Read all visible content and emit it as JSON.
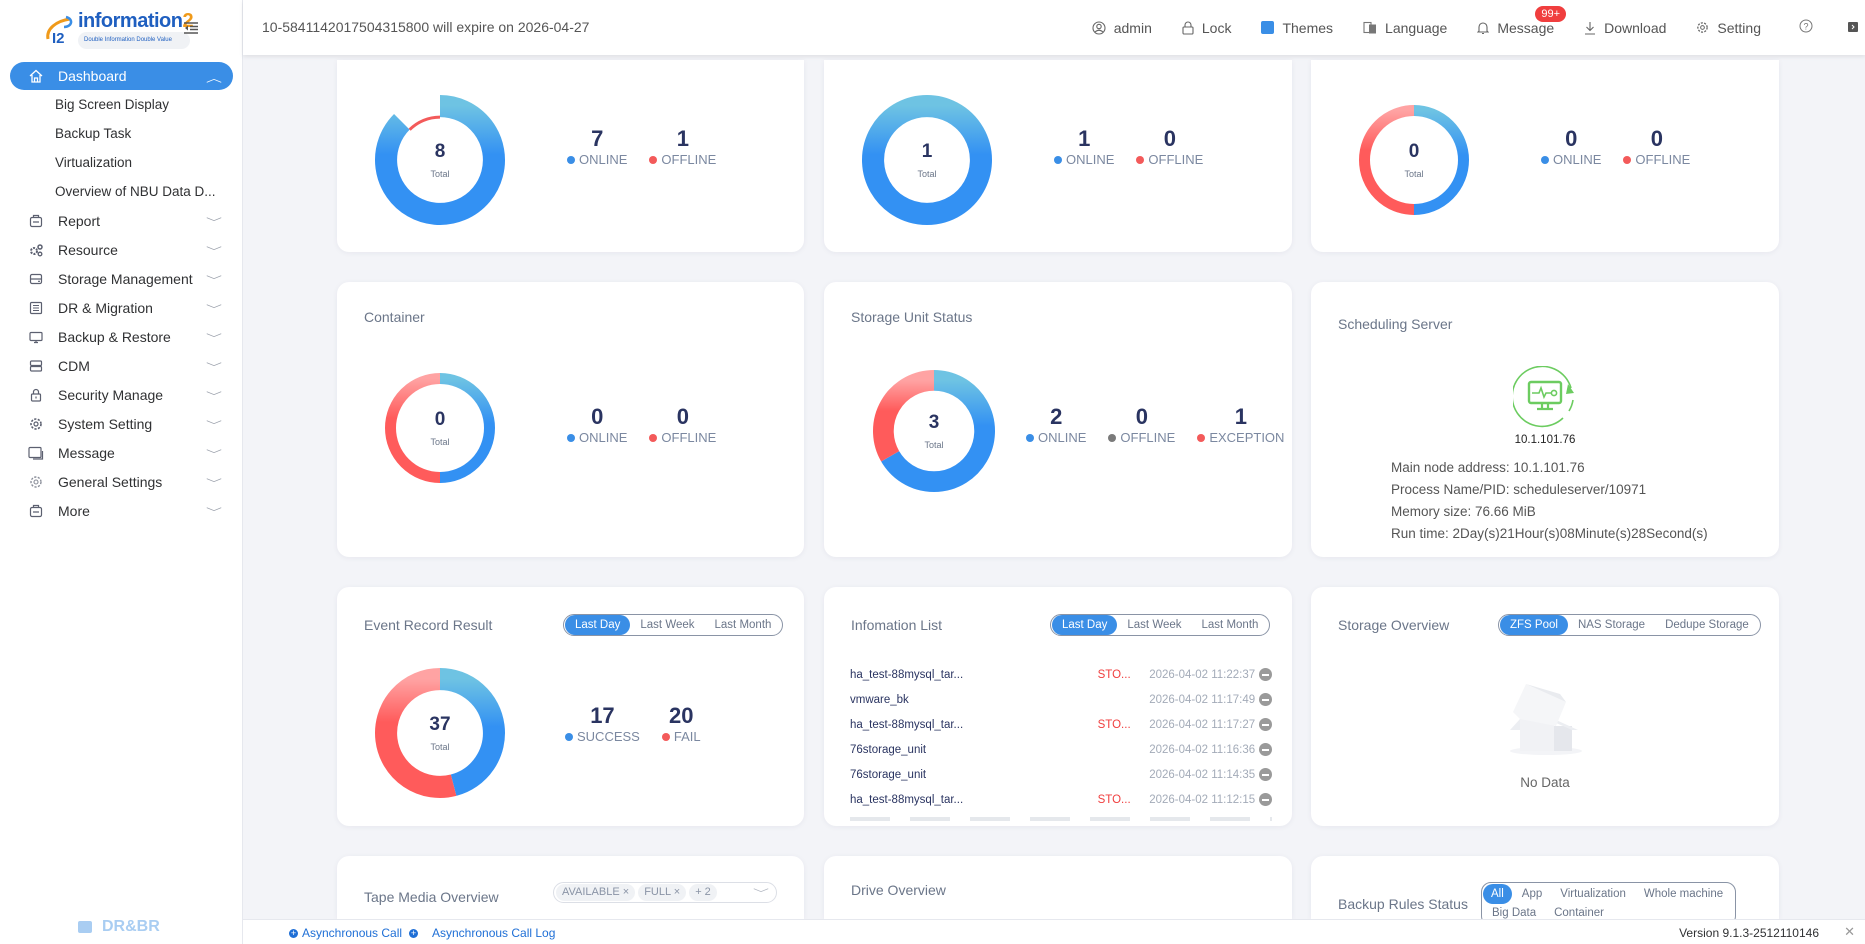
{
  "app": {
    "brand": "information",
    "brand_suffix": "2",
    "tagline": "Double Information Double Value",
    "footer_brand": "DR&BR"
  },
  "header": {
    "expire_notice": "10-5841142017504315800 will expire on 2026-04-27",
    "items": {
      "user": "admin",
      "lock": "Lock",
      "themes": "Themes",
      "language": "Language",
      "message": "Message",
      "message_badge": "99+",
      "download": "Download",
      "setting": "Setting"
    },
    "accent_color": "#3a8ee6"
  },
  "sidebar": {
    "active": {
      "label": "Dashboard",
      "icon": "home-icon"
    },
    "sub_items": [
      "Big Screen Display",
      "Backup Task",
      "Virtualization",
      "Overview of NBU Data D..."
    ],
    "items": [
      {
        "label": "Report",
        "icon": "report-icon"
      },
      {
        "label": "Resource",
        "icon": "resource-icon"
      },
      {
        "label": "Storage Management",
        "icon": "storage-icon"
      },
      {
        "label": "DR & Migration",
        "icon": "list-icon"
      },
      {
        "label": "Backup & Restore",
        "icon": "monitor-icon"
      },
      {
        "label": "CDM",
        "icon": "server-icon"
      },
      {
        "label": "Security Manage",
        "icon": "lock-icon"
      },
      {
        "label": "System Setting",
        "icon": "gear-icon"
      },
      {
        "label": "Message",
        "icon": "message-icon"
      },
      {
        "label": "General Settings",
        "icon": "gear-icon"
      },
      {
        "label": "More",
        "icon": "more-icon"
      }
    ]
  },
  "cards": {
    "row1": [
      {
        "total": "8",
        "total_label": "Total",
        "stats": [
          {
            "value": "7",
            "label": "ONLINE",
            "color": "#3a8ee6"
          },
          {
            "value": "1",
            "label": "OFFLINE",
            "color": "#f35a5a"
          }
        ]
      },
      {
        "total": "1",
        "total_label": "Total",
        "stats": [
          {
            "value": "1",
            "label": "ONLINE",
            "color": "#3a8ee6"
          },
          {
            "value": "0",
            "label": "OFFLINE",
            "color": "#f35a5a"
          }
        ]
      },
      {
        "total": "0",
        "total_label": "Total",
        "stats": [
          {
            "value": "0",
            "label": "ONLINE",
            "color": "#3a8ee6"
          },
          {
            "value": "0",
            "label": "OFFLINE",
            "color": "#f35a5a"
          }
        ]
      }
    ],
    "container": {
      "title": "Container",
      "total": "0",
      "total_label": "Total",
      "stats": [
        {
          "value": "0",
          "label": "ONLINE",
          "color": "#3a8ee6"
        },
        {
          "value": "0",
          "label": "OFFLINE",
          "color": "#f35a5a"
        }
      ]
    },
    "storage_unit": {
      "title": "Storage Unit Status",
      "total": "3",
      "total_label": "Total",
      "stats": [
        {
          "value": "2",
          "label": "ONLINE",
          "color": "#3a8ee6"
        },
        {
          "value": "0",
          "label": "OFFLINE",
          "color": "#7a7a7a"
        },
        {
          "value": "1",
          "label": "EXCEPTION",
          "color": "#f35a5a"
        }
      ]
    },
    "scheduling": {
      "title": "Scheduling Server",
      "ip": "10.1.101.76",
      "lines": [
        "Main node address: 10.1.101.76",
        "Process Name/PID: scheduleserver/10971",
        "Memory size: 76.66 MiB",
        "Run time: 2Day(s)21Hour(s)08Minute(s)28Second(s)"
      ]
    },
    "event_record": {
      "title": "Event Record Result",
      "tabs": [
        "Last Day",
        "Last Week",
        "Last Month"
      ],
      "total": "37",
      "total_label": "Total",
      "stats": [
        {
          "value": "17",
          "label": "SUCCESS",
          "color": "#3a8ee6"
        },
        {
          "value": "20",
          "label": "FAIL",
          "color": "#f35a5a"
        }
      ]
    },
    "info_list": {
      "title": "Infomation List",
      "tabs": [
        "Last Day",
        "Last Week",
        "Last Month"
      ],
      "rows": [
        {
          "name": "ha_test-88mysql_tar...",
          "status": "STO...",
          "time": "2026-04-02 11:22:37"
        },
        {
          "name": "vmware_bk",
          "status": "",
          "time": "2026-04-02 11:17:49"
        },
        {
          "name": "ha_test-88mysql_tar...",
          "status": "STO...",
          "time": "2026-04-02 11:17:27"
        },
        {
          "name": "76storage_unit",
          "status": "",
          "time": "2026-04-02 11:16:36"
        },
        {
          "name": "76storage_unit",
          "status": "",
          "time": "2026-04-02 11:14:35"
        },
        {
          "name": "ha_test-88mysql_tar...",
          "status": "STO...",
          "time": "2026-04-02 11:12:15"
        }
      ]
    },
    "storage_overview": {
      "title": "Storage Overview",
      "tabs": [
        "ZFS Pool",
        "NAS Storage",
        "Dedupe Storage"
      ],
      "empty_text": "No Data"
    },
    "tape_media": {
      "title": "Tape Media Overview",
      "tags": [
        "AVAILABLE",
        "FULL"
      ],
      "more": "+ 2"
    },
    "drive": {
      "title": "Drive Overview"
    },
    "backup_rules": {
      "title": "Backup Rules Status",
      "tabs": [
        "All",
        "App",
        "Virtualization",
        "Whole machine",
        "Big Data",
        "Container"
      ]
    }
  },
  "footer": {
    "async_call": "Asynchronous Call",
    "async_log": "Asynchronous Call Log",
    "version": "Version 9.1.3-2512110146"
  }
}
